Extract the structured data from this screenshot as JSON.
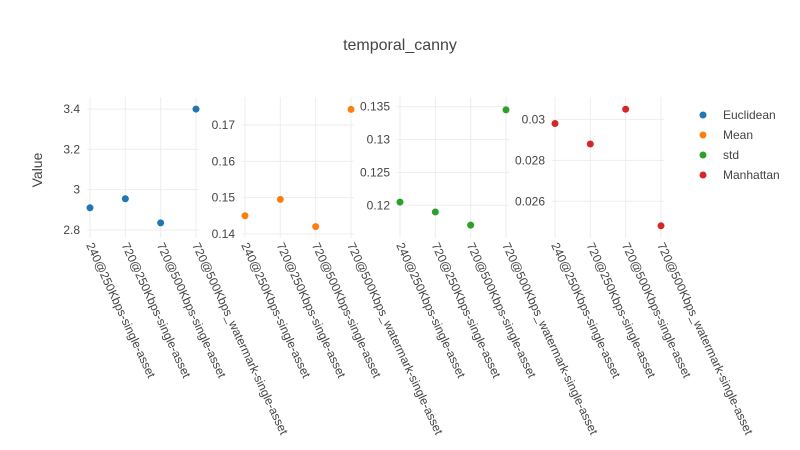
{
  "chart_data": {
    "type": "scatter",
    "title": "temporal_canny",
    "ylabel": "Value",
    "categories": [
      "240@250Kbps-single-asset",
      "720@250Kbps-single-asset",
      "720@500Kbps-single-asset",
      "720@500Kbps_watermark-single-asset"
    ],
    "grid": true,
    "legend_position": "right",
    "series": [
      {
        "name": "Euclidean",
        "color": "#1f77b4",
        "values": [
          2.91,
          2.955,
          2.835,
          3.4
        ],
        "ylim": [
          2.775,
          3.445
        ],
        "yticks": [
          2.8,
          3,
          3.2,
          3.4
        ],
        "ytick_labels": [
          "2.8",
          "3",
          "3.2",
          "3.4"
        ]
      },
      {
        "name": "Mean",
        "color": "#ff7f0e",
        "values": [
          0.145,
          0.1495,
          0.142,
          0.1743
        ],
        "ylim": [
          0.1397,
          0.1769
        ],
        "yticks": [
          0.14,
          0.15,
          0.16,
          0.17
        ],
        "ytick_labels": [
          "0.14",
          "0.15",
          "0.16",
          "0.17"
        ]
      },
      {
        "name": "std",
        "color": "#2ca02c",
        "values": [
          0.1205,
          0.119,
          0.117,
          0.1345
        ],
        "ylim": [
          0.1155,
          0.136
        ],
        "yticks": [
          0.12,
          0.125,
          0.13,
          0.135
        ],
        "ytick_labels": [
          "0.12",
          "0.125",
          "0.13",
          "0.135"
        ]
      },
      {
        "name": "Manhattan",
        "color": "#d62728",
        "values": [
          0.0298,
          0.0288,
          0.0305,
          0.0248
        ],
        "ylim": [
          0.02435,
          0.03095
        ],
        "yticks": [
          0.026,
          0.028,
          0.03
        ],
        "ytick_labels": [
          "0.026",
          "0.028",
          "0.03"
        ]
      }
    ]
  }
}
